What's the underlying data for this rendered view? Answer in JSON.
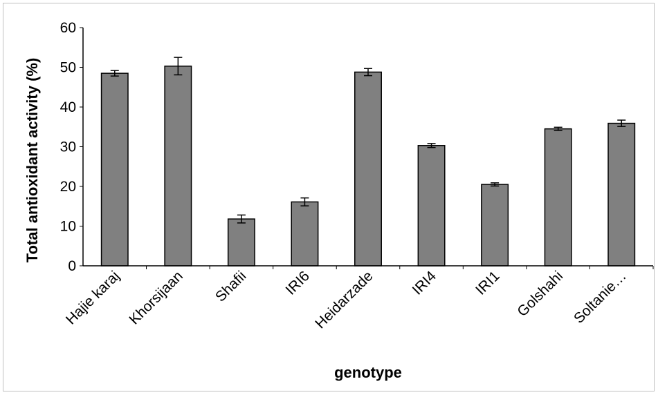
{
  "chart_data": {
    "type": "bar",
    "title": "",
    "xlabel": "genotype",
    "ylabel": "Total antioxidant activity (%)",
    "ylim": [
      0,
      60
    ],
    "yticks": [
      0,
      10,
      20,
      30,
      40,
      50,
      60
    ],
    "yticks_labels": [
      "0",
      "10",
      "20",
      "30",
      "40",
      "50",
      "60"
    ],
    "grid": false,
    "legend": "none",
    "categories": [
      "Hajie karaj",
      "Khorsijaan",
      "Shafii",
      "IRI6",
      "Heidarzade",
      "IRI4",
      "IRI1",
      "Golshahi",
      "Soltanie…"
    ],
    "series": [
      {
        "values": [
          48.5,
          50.3,
          11.8,
          16.1,
          48.8,
          30.3,
          20.5,
          34.5,
          35.9
        ],
        "errors": [
          0.7,
          2.2,
          1.0,
          1.0,
          0.9,
          0.5,
          0.4,
          0.4,
          0.8
        ]
      }
    ],
    "colors": {
      "bar_fill": "#808080",
      "bar_stroke": "#000000",
      "axis": "#000000",
      "frame": "#bfbfbf"
    }
  }
}
